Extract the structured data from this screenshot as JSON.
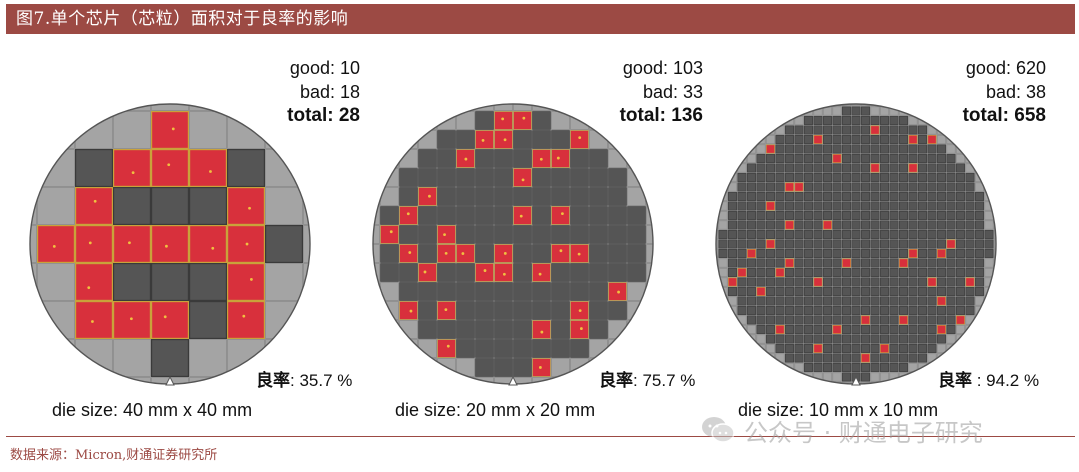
{
  "title": "图7.单个芯片（芯粒）面积对于良率的影响",
  "source": "数据来源：Micron,财通证券研究所",
  "watermark": "公众号 · 财通电子研究",
  "colors": {
    "title_bar": "#9c4a44",
    "good_die": "#555555",
    "bad_die": "#d8303c",
    "partial_die": "#a4a4a4",
    "wafer_bg": "#9a9a9a"
  },
  "wafers": [
    {
      "good_text": "good: 10",
      "bad_text": "bad: 18",
      "total_text": "total: 28",
      "yield_label": "良率",
      "yield_value": ": 35.7 %",
      "die_size": "die size: 40 mm x 40 mm",
      "good": 10,
      "bad": 18,
      "total": 28,
      "yield_pct": 35.7
    },
    {
      "good_text": "good: 103",
      "bad_text": "bad: 33",
      "total_text": "total: 136",
      "yield_label": "良率",
      "yield_value": ": 75.7 %",
      "die_size": "die size: 20 mm x 20 mm",
      "good": 103,
      "bad": 33,
      "total": 136,
      "yield_pct": 75.7
    },
    {
      "good_text": "good: 620",
      "bad_text": "bad: 38",
      "total_text": "total: 658",
      "yield_label": "良率",
      "yield_value": " : 94.2 %",
      "die_size": "die size: 10 mm x 10 mm",
      "good": 620,
      "bad": 38,
      "total": 658,
      "yield_pct": 94.2
    }
  ]
}
